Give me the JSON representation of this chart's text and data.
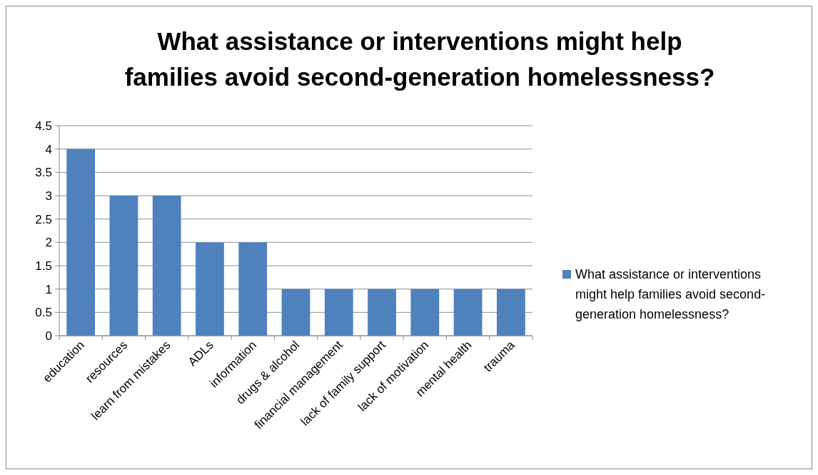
{
  "chart_data": {
    "type": "bar",
    "title": "What assistance or interventions might help families avoid second-generation homelessness?",
    "categories": [
      "education",
      "resources",
      "learn from mistakes",
      "ADLs",
      "information",
      "drugs & alcohol",
      "financial management",
      "lack of family support",
      "lack of motivation",
      "mental health",
      "trauma"
    ],
    "series": [
      {
        "name": "What assistance or interventions might help families avoid second-generation homelessness?",
        "color": "#4f81bd",
        "values": [
          4,
          3,
          3,
          2,
          2,
          1,
          1,
          1,
          1,
          1,
          1
        ]
      }
    ],
    "ylim": [
      0,
      4.5
    ],
    "yticks": [
      0,
      0.5,
      1,
      1.5,
      2,
      2.5,
      3,
      3.5,
      4,
      4.5
    ],
    "grid": "y",
    "legend": "right"
  }
}
